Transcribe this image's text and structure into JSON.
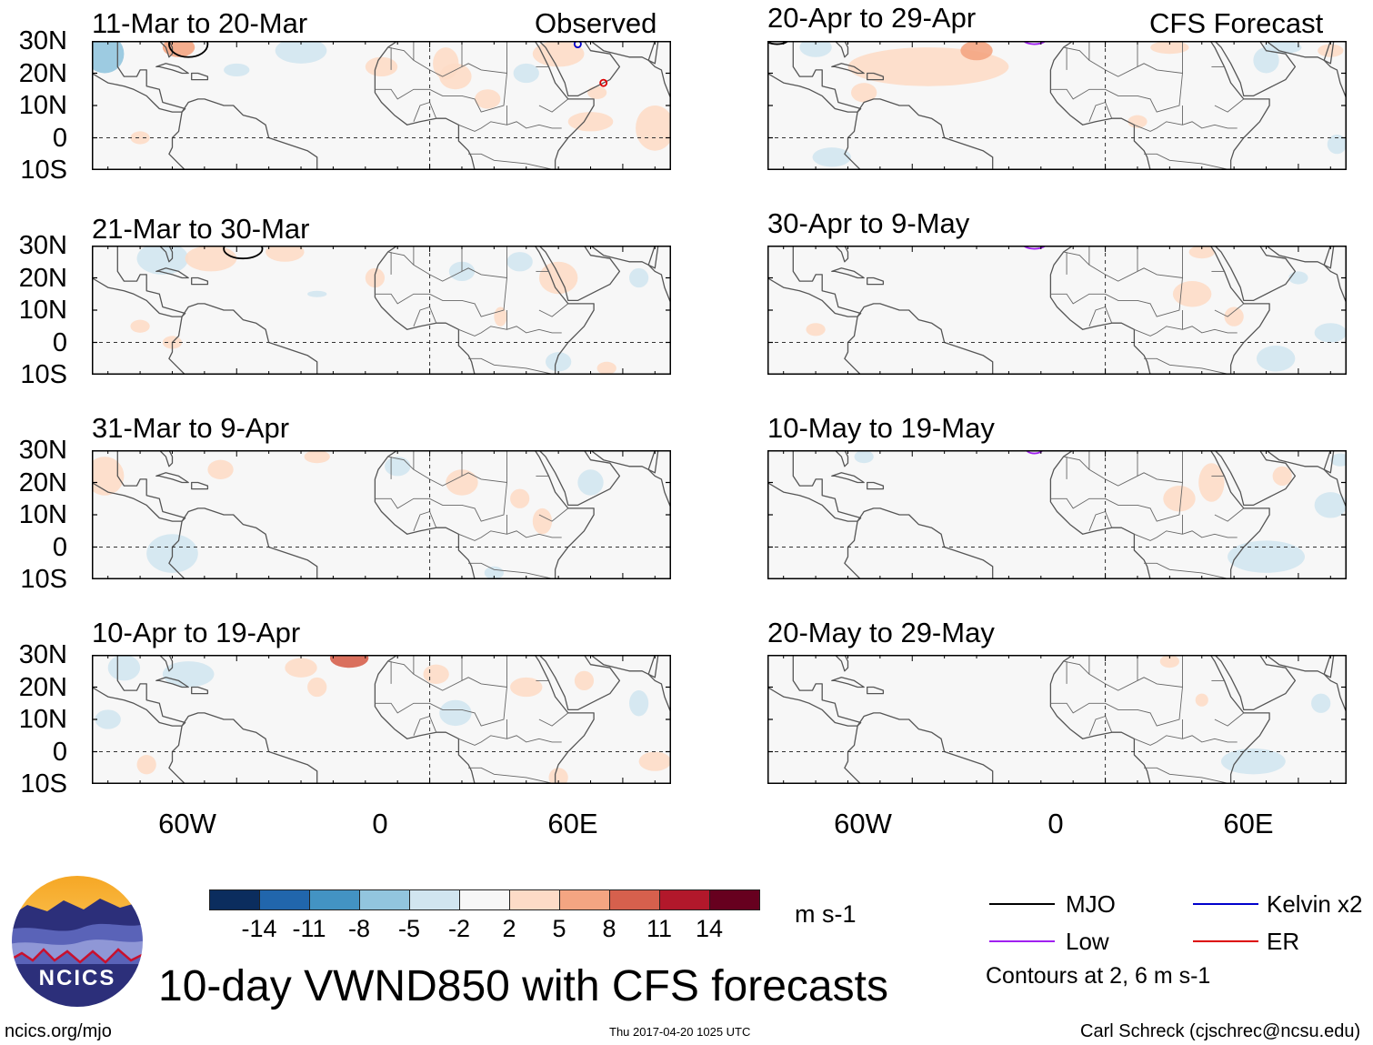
{
  "left_column_header": "Observed",
  "right_column_header": "CFS Forecast",
  "panels_left": [
    {
      "title": "11-Mar to 20-Mar"
    },
    {
      "title": "21-Mar to 30-Mar"
    },
    {
      "title": "31-Mar to 9-Apr"
    },
    {
      "title": "10-Apr to 19-Apr"
    }
  ],
  "panels_right": [
    {
      "title": "20-Apr to 29-Apr"
    },
    {
      "title": "30-Apr to 9-May"
    },
    {
      "title": "10-May to 19-May"
    },
    {
      "title": "20-May to 29-May"
    }
  ],
  "lat_labels": [
    "30N",
    "20N",
    "10N",
    "0",
    "10S"
  ],
  "lon_labels": [
    "60W",
    "0",
    "60E"
  ],
  "colorbar": {
    "ticks": [
      "-14",
      "-11",
      "-8",
      "-5",
      "-2",
      "2",
      "5",
      "8",
      "11",
      "14"
    ],
    "colors": [
      "#0b2d5e",
      "#2166ac",
      "#4393c3",
      "#92c5de",
      "#d1e5f0",
      "#f7f7f7",
      "#fddbc7",
      "#f4a582",
      "#d6604d",
      "#b2182b",
      "#67001f"
    ],
    "units": "m s-1"
  },
  "legend": {
    "mjo": "MJO",
    "low": "Low",
    "kelvin": "Kelvin x2",
    "er": "ER",
    "contours_note": "Contours at 2, 6 m s-1",
    "colors": {
      "mjo": "#000000",
      "low": "#a020f0",
      "kelvin": "#0000cc",
      "er": "#dd0000"
    }
  },
  "logo_text": "NCICS",
  "main_title": "10-day VWND850 with CFS forecasts",
  "footer": {
    "left": "ncics.org/mjo",
    "center": "Thu 2017-04-20 1025 UTC",
    "right": "Carl Schreck (cjschrec@ncsu.edu)"
  }
}
